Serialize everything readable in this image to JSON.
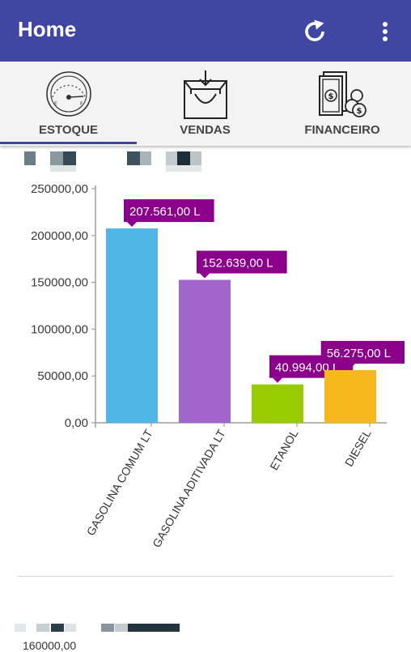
{
  "appbar": {
    "title": "Home",
    "bg": "#3f47a3"
  },
  "tabs": [
    {
      "label": "ESTOQUE",
      "icon": "fuel-gauge-icon",
      "active": true
    },
    {
      "label": "VENDAS",
      "icon": "shopping-bag-icon",
      "active": false
    },
    {
      "label": "FINANCEIRO",
      "icon": "money-coins-icon",
      "active": false
    }
  ],
  "chart_data": {
    "type": "bar",
    "categories": [
      "GASOLINA COMUM LT",
      "GASOLINA ADITIVADA LT",
      "ETANOL",
      "DIESEL"
    ],
    "values": [
      207561,
      152639,
      40994,
      56275
    ],
    "data_labels": [
      "207.561,00 L",
      "152.639,00 L",
      "40.994,00 L",
      "56.275,00 L"
    ],
    "colors": [
      "#4fb6e6",
      "#a265cc",
      "#99cc00",
      "#f6b81c"
    ],
    "label_bg": "#8b008b",
    "ylim": [
      0,
      250000
    ],
    "yticks": [
      {
        "value": 0,
        "label": "0,00"
      },
      {
        "value": 50000,
        "label": "50000,00"
      },
      {
        "value": 100000,
        "label": "100000,00"
      },
      {
        "value": 150000,
        "label": "150000,00"
      },
      {
        "value": 200000,
        "label": "200000,00"
      },
      {
        "value": 250000,
        "label": "250000,00"
      }
    ],
    "title": "",
    "xlabel": "",
    "ylabel": ""
  },
  "second_chart": {
    "first_tick_label": "160000,00"
  }
}
